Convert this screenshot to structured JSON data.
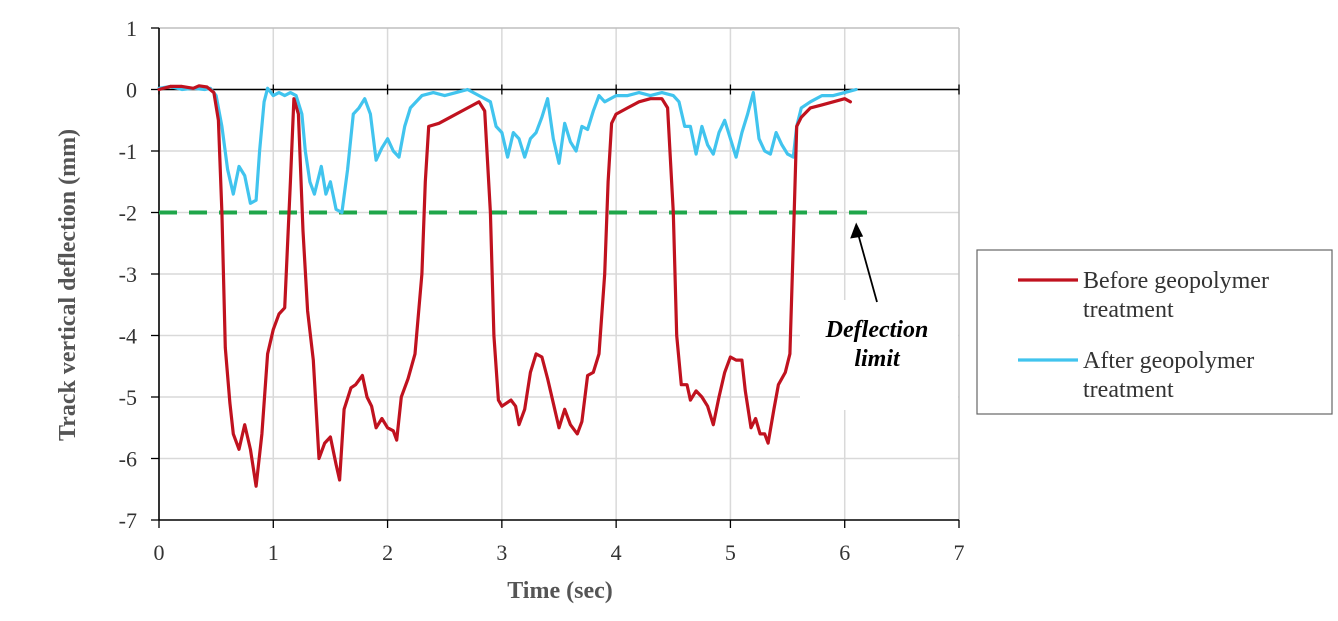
{
  "chart_data": {
    "type": "line",
    "title": "",
    "xlabel": "Time (sec)",
    "ylabel": "Track vertical deflection  (mm)",
    "xlim": [
      0,
      7
    ],
    "ylim": [
      -7,
      1
    ],
    "xticks": [
      "0",
      "1",
      "2",
      "3",
      "4",
      "5",
      "6",
      "7"
    ],
    "yticks": [
      "1",
      "0",
      "-1",
      "-2",
      "-3",
      "-4",
      "-5",
      "-6",
      "-7"
    ],
    "grid": true,
    "legend_position": "right",
    "annotation": {
      "lines": [
        "Deflection",
        "limit"
      ],
      "arrow_target": [
        6.1,
        -2
      ]
    },
    "reference_line": {
      "y": -2,
      "color": "#1fa64a",
      "style": "dashed"
    },
    "series": [
      {
        "name": "Before geopolymer treatment",
        "legend_lines": [
          "Before geopolymer",
          "treatment"
        ],
        "color": "#c0121f",
        "points": [
          [
            0,
            0
          ],
          [
            0.1,
            0.05
          ],
          [
            0.2,
            0.05
          ],
          [
            0.3,
            0.02
          ],
          [
            0.35,
            0.06
          ],
          [
            0.42,
            0.04
          ],
          [
            0.48,
            -0.05
          ],
          [
            0.52,
            -0.5
          ],
          [
            0.55,
            -2
          ],
          [
            0.58,
            -4.2
          ],
          [
            0.62,
            -5.1
          ],
          [
            0.65,
            -5.6
          ],
          [
            0.7,
            -5.85
          ],
          [
            0.75,
            -5.45
          ],
          [
            0.8,
            -5.85
          ],
          [
            0.85,
            -6.45
          ],
          [
            0.9,
            -5.6
          ],
          [
            0.95,
            -4.3
          ],
          [
            1.0,
            -3.9
          ],
          [
            1.05,
            -3.65
          ],
          [
            1.1,
            -3.55
          ],
          [
            1.15,
            -1.5
          ],
          [
            1.18,
            -0.15
          ],
          [
            1.22,
            -0.4
          ],
          [
            1.26,
            -2.3
          ],
          [
            1.3,
            -3.6
          ],
          [
            1.35,
            -4.4
          ],
          [
            1.4,
            -6.0
          ],
          [
            1.45,
            -5.75
          ],
          [
            1.5,
            -5.65
          ],
          [
            1.55,
            -6.1
          ],
          [
            1.58,
            -6.35
          ],
          [
            1.62,
            -5.2
          ],
          [
            1.68,
            -4.85
          ],
          [
            1.72,
            -4.8
          ],
          [
            1.78,
            -4.65
          ],
          [
            1.82,
            -5.0
          ],
          [
            1.86,
            -5.15
          ],
          [
            1.9,
            -5.5
          ],
          [
            1.95,
            -5.35
          ],
          [
            2.0,
            -5.5
          ],
          [
            2.05,
            -5.55
          ],
          [
            2.08,
            -5.7
          ],
          [
            2.12,
            -5.0
          ],
          [
            2.18,
            -4.7
          ],
          [
            2.24,
            -4.3
          ],
          [
            2.3,
            -3.0
          ],
          [
            2.33,
            -1.5
          ],
          [
            2.36,
            -0.6
          ],
          [
            2.45,
            -0.55
          ],
          [
            2.55,
            -0.45
          ],
          [
            2.65,
            -0.35
          ],
          [
            2.75,
            -0.25
          ],
          [
            2.8,
            -0.2
          ],
          [
            2.85,
            -0.35
          ],
          [
            2.9,
            -2.0
          ],
          [
            2.93,
            -4.0
          ],
          [
            2.97,
            -5.05
          ],
          [
            3.0,
            -5.15
          ],
          [
            3.08,
            -5.05
          ],
          [
            3.12,
            -5.15
          ],
          [
            3.15,
            -5.45
          ],
          [
            3.2,
            -5.2
          ],
          [
            3.25,
            -4.6
          ],
          [
            3.3,
            -4.3
          ],
          [
            3.35,
            -4.35
          ],
          [
            3.4,
            -4.7
          ],
          [
            3.45,
            -5.1
          ],
          [
            3.5,
            -5.5
          ],
          [
            3.55,
            -5.2
          ],
          [
            3.6,
            -5.45
          ],
          [
            3.66,
            -5.6
          ],
          [
            3.7,
            -5.4
          ],
          [
            3.75,
            -4.65
          ],
          [
            3.8,
            -4.6
          ],
          [
            3.85,
            -4.3
          ],
          [
            3.9,
            -3.0
          ],
          [
            3.93,
            -1.5
          ],
          [
            3.96,
            -0.55
          ],
          [
            4.0,
            -0.4
          ],
          [
            4.1,
            -0.3
          ],
          [
            4.2,
            -0.2
          ],
          [
            4.3,
            -0.15
          ],
          [
            4.4,
            -0.15
          ],
          [
            4.45,
            -0.3
          ],
          [
            4.5,
            -2.0
          ],
          [
            4.53,
            -4.0
          ],
          [
            4.57,
            -4.8
          ],
          [
            4.62,
            -4.8
          ],
          [
            4.65,
            -5.05
          ],
          [
            4.7,
            -4.9
          ],
          [
            4.75,
            -5.0
          ],
          [
            4.8,
            -5.15
          ],
          [
            4.85,
            -5.45
          ],
          [
            4.9,
            -5.0
          ],
          [
            4.95,
            -4.6
          ],
          [
            5.0,
            -4.35
          ],
          [
            5.05,
            -4.4
          ],
          [
            5.1,
            -4.4
          ],
          [
            5.13,
            -4.9
          ],
          [
            5.18,
            -5.5
          ],
          [
            5.22,
            -5.35
          ],
          [
            5.26,
            -5.6
          ],
          [
            5.3,
            -5.6
          ],
          [
            5.33,
            -5.75
          ],
          [
            5.38,
            -5.2
          ],
          [
            5.42,
            -4.8
          ],
          [
            5.48,
            -4.6
          ],
          [
            5.52,
            -4.3
          ],
          [
            5.55,
            -2.5
          ],
          [
            5.58,
            -0.6
          ],
          [
            5.62,
            -0.45
          ],
          [
            5.7,
            -0.3
          ],
          [
            5.8,
            -0.25
          ],
          [
            5.9,
            -0.2
          ],
          [
            6.0,
            -0.15
          ],
          [
            6.05,
            -0.2
          ]
        ]
      },
      {
        "name": "After geopolymer treatment",
        "legend_lines": [
          "After geopolymer",
          "treatment"
        ],
        "color": "#41c4ee",
        "points": [
          [
            0,
            0.02
          ],
          [
            0.1,
            0.05
          ],
          [
            0.2,
            0.0
          ],
          [
            0.3,
            0.02
          ],
          [
            0.4,
            0.0
          ],
          [
            0.45,
            0.02
          ],
          [
            0.5,
            -0.1
          ],
          [
            0.55,
            -0.6
          ],
          [
            0.6,
            -1.3
          ],
          [
            0.65,
            -1.7
          ],
          [
            0.7,
            -1.25
          ],
          [
            0.75,
            -1.4
          ],
          [
            0.8,
            -1.85
          ],
          [
            0.85,
            -1.8
          ],
          [
            0.88,
            -1.0
          ],
          [
            0.92,
            -0.2
          ],
          [
            0.95,
            0.02
          ],
          [
            1.0,
            -0.1
          ],
          [
            1.05,
            -0.05
          ],
          [
            1.1,
            -0.1
          ],
          [
            1.15,
            -0.05
          ],
          [
            1.2,
            -0.1
          ],
          [
            1.25,
            -0.4
          ],
          [
            1.28,
            -1.0
          ],
          [
            1.32,
            -1.5
          ],
          [
            1.36,
            -1.7
          ],
          [
            1.42,
            -1.25
          ],
          [
            1.46,
            -1.7
          ],
          [
            1.5,
            -1.5
          ],
          [
            1.55,
            -1.95
          ],
          [
            1.6,
            -2.0
          ],
          [
            1.65,
            -1.3
          ],
          [
            1.7,
            -0.4
          ],
          [
            1.75,
            -0.3
          ],
          [
            1.8,
            -0.15
          ],
          [
            1.85,
            -0.4
          ],
          [
            1.9,
            -1.15
          ],
          [
            1.95,
            -0.95
          ],
          [
            2.0,
            -0.8
          ],
          [
            2.05,
            -1.0
          ],
          [
            2.1,
            -1.1
          ],
          [
            2.15,
            -0.6
          ],
          [
            2.2,
            -0.3
          ],
          [
            2.3,
            -0.1
          ],
          [
            2.4,
            -0.05
          ],
          [
            2.5,
            -0.1
          ],
          [
            2.6,
            -0.05
          ],
          [
            2.7,
            0.0
          ],
          [
            2.8,
            -0.1
          ],
          [
            2.9,
            -0.2
          ],
          [
            2.95,
            -0.6
          ],
          [
            3.0,
            -0.7
          ],
          [
            3.05,
            -1.1
          ],
          [
            3.1,
            -0.7
          ],
          [
            3.15,
            -0.8
          ],
          [
            3.2,
            -1.1
          ],
          [
            3.25,
            -0.8
          ],
          [
            3.3,
            -0.7
          ],
          [
            3.35,
            -0.45
          ],
          [
            3.4,
            -0.15
          ],
          [
            3.45,
            -0.8
          ],
          [
            3.5,
            -1.2
          ],
          [
            3.55,
            -0.55
          ],
          [
            3.6,
            -0.85
          ],
          [
            3.65,
            -1.0
          ],
          [
            3.7,
            -0.6
          ],
          [
            3.75,
            -0.65
          ],
          [
            3.8,
            -0.35
          ],
          [
            3.85,
            -0.1
          ],
          [
            3.9,
            -0.2
          ],
          [
            4.0,
            -0.1
          ],
          [
            4.1,
            -0.1
          ],
          [
            4.2,
            -0.05
          ],
          [
            4.3,
            -0.1
          ],
          [
            4.4,
            -0.05
          ],
          [
            4.5,
            -0.1
          ],
          [
            4.55,
            -0.2
          ],
          [
            4.6,
            -0.6
          ],
          [
            4.65,
            -0.6
          ],
          [
            4.7,
            -1.05
          ],
          [
            4.75,
            -0.6
          ],
          [
            4.8,
            -0.9
          ],
          [
            4.85,
            -1.05
          ],
          [
            4.9,
            -0.7
          ],
          [
            4.95,
            -0.5
          ],
          [
            5.0,
            -0.8
          ],
          [
            5.05,
            -1.1
          ],
          [
            5.1,
            -0.7
          ],
          [
            5.15,
            -0.4
          ],
          [
            5.2,
            -0.05
          ],
          [
            5.25,
            -0.8
          ],
          [
            5.3,
            -1.0
          ],
          [
            5.35,
            -1.05
          ],
          [
            5.4,
            -0.7
          ],
          [
            5.45,
            -0.9
          ],
          [
            5.5,
            -1.05
          ],
          [
            5.55,
            -1.1
          ],
          [
            5.58,
            -0.6
          ],
          [
            5.62,
            -0.3
          ],
          [
            5.7,
            -0.2
          ],
          [
            5.8,
            -0.1
          ],
          [
            5.9,
            -0.1
          ],
          [
            6.0,
            -0.05
          ],
          [
            6.1,
            0.0
          ]
        ]
      }
    ]
  }
}
